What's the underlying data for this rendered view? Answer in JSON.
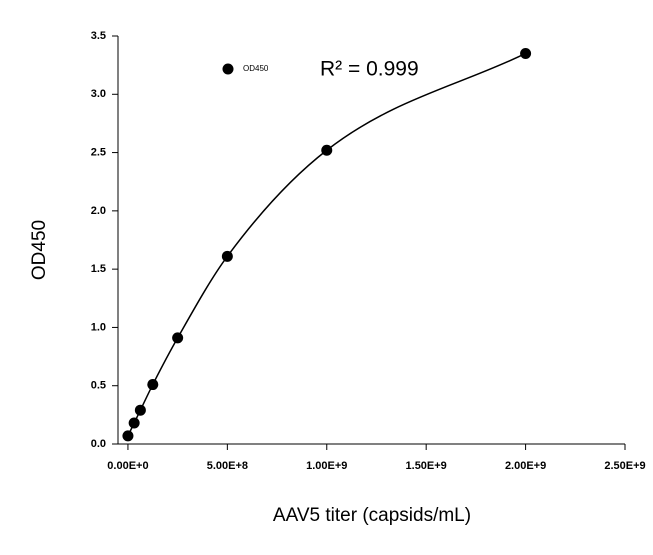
{
  "chart_data": {
    "type": "scatter",
    "x_label": "AAV5 titer (capsids/mL)",
    "y_label": "OD450",
    "annotation": "R² = 0.999",
    "legend_position": "top-left",
    "series": [
      {
        "name": "OD450",
        "color": "#000000",
        "x": [
          0,
          31250000,
          62500000,
          125000000,
          250000000,
          500000000,
          1000000000,
          2000000000
        ],
        "values": [
          0.07,
          0.18,
          0.29,
          0.51,
          0.91,
          1.61,
          2.52,
          3.35
        ]
      }
    ],
    "xlim": [
      -50000000,
      2500000000
    ],
    "xticks": [
      {
        "value": 0,
        "label": "0.00E+0"
      },
      {
        "value": 500000000,
        "label": "5.00E+8"
      },
      {
        "value": 1000000000,
        "label": "1.00E+9"
      },
      {
        "value": 1500000000,
        "label": "1.50E+9"
      },
      {
        "value": 2000000000,
        "label": "2.00E+9"
      },
      {
        "value": 2500000000,
        "label": "2.50E+9"
      }
    ],
    "ylim": [
      0,
      3.5
    ],
    "yticks": [
      {
        "value": 0,
        "label": "0.0"
      },
      0.5,
      {
        "value": 1,
        "label": "1.0"
      },
      1.5,
      {
        "value": 2,
        "label": "2.0"
      },
      2.5,
      {
        "value": 3,
        "label": "3.0"
      },
      3.5
    ]
  }
}
